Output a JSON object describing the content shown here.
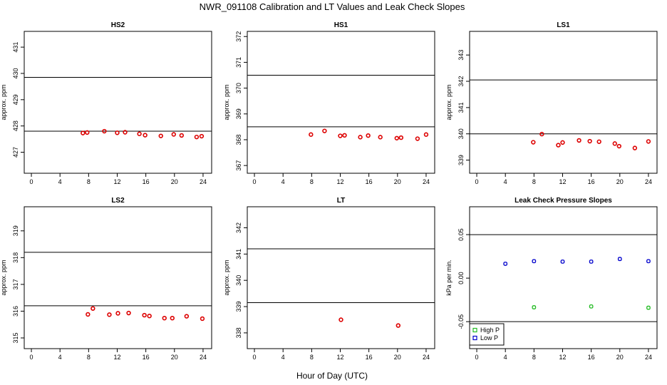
{
  "title": "NWR_091108  Calibration and LT Values and Leak Check Slopes",
  "xlabel": "Hour of Day (UTC)",
  "legend": {
    "high": "High P",
    "low": "Low P"
  },
  "colors": {
    "cal": "#dd0000",
    "high": "#22bb22",
    "low": "#0000cc"
  },
  "chart_data": [
    {
      "type": "scatter",
      "title": "HS2",
      "ylabel": "approx. ppm",
      "xlim": [
        -1,
        25.2
      ],
      "ylim": [
        426.2,
        431.6
      ],
      "xticks": [
        0,
        4,
        8,
        12,
        16,
        20,
        24
      ],
      "yticks": [
        427,
        428,
        429,
        430,
        431
      ],
      "hlines": [
        427.8,
        429.85
      ],
      "series": [
        {
          "style": "cal",
          "x": [
            7.2,
            7.8,
            10.2,
            12.0,
            13.1,
            15.1,
            15.9,
            18.1,
            19.9,
            21.0,
            23.1,
            23.8
          ],
          "y": [
            427.73,
            427.75,
            427.8,
            427.74,
            427.76,
            427.7,
            427.65,
            427.62,
            427.68,
            427.64,
            427.58,
            427.61
          ]
        }
      ]
    },
    {
      "type": "scatter",
      "title": "HS1",
      "ylabel": "approx. ppm",
      "xlim": [
        -1,
        25.2
      ],
      "ylim": [
        366.7,
        372.2
      ],
      "xticks": [
        0,
        4,
        8,
        12,
        16,
        20,
        24
      ],
      "yticks": [
        367,
        368,
        369,
        370,
        371,
        372
      ],
      "hlines": [
        368.5,
        370.5
      ],
      "series": [
        {
          "style": "cal",
          "x": [
            7.9,
            9.8,
            12.0,
            12.6,
            14.8,
            15.9,
            17.6,
            19.9,
            20.5,
            22.8,
            24.0
          ],
          "y": [
            368.2,
            368.34,
            368.15,
            368.17,
            368.1,
            368.16,
            368.1,
            368.06,
            368.08,
            368.04,
            368.2
          ]
        }
      ]
    },
    {
      "type": "scatter",
      "title": "LS1",
      "ylabel": "approx. ppm",
      "xlim": [
        -1,
        25.2
      ],
      "ylim": [
        338.5,
        343.9
      ],
      "xticks": [
        0,
        4,
        8,
        12,
        16,
        20,
        24
      ],
      "yticks": [
        339,
        340,
        341,
        342,
        343
      ],
      "hlines": [
        340.0,
        342.05
      ],
      "series": [
        {
          "style": "cal",
          "x": [
            7.9,
            9.1,
            11.4,
            12.0,
            14.3,
            15.8,
            17.1,
            19.3,
            19.9,
            22.1,
            24.0
          ],
          "y": [
            339.68,
            339.99,
            339.57,
            339.67,
            339.75,
            339.72,
            339.7,
            339.63,
            339.53,
            339.46,
            339.71
          ]
        }
      ]
    },
    {
      "type": "scatter",
      "title": "LS2",
      "ylabel": "approx. ppm",
      "xlim": [
        -1,
        25.2
      ],
      "ylim": [
        314.6,
        319.9
      ],
      "xticks": [
        0,
        4,
        8,
        12,
        16,
        20,
        24
      ],
      "yticks": [
        315,
        316,
        317,
        318,
        319
      ],
      "hlines": [
        316.2,
        318.2
      ],
      "series": [
        {
          "style": "cal",
          "x": [
            7.9,
            8.6,
            10.9,
            12.1,
            13.6,
            15.8,
            16.5,
            18.6,
            19.7,
            21.7,
            23.9
          ],
          "y": [
            315.88,
            316.1,
            315.87,
            315.92,
            315.93,
            315.85,
            315.82,
            315.74,
            315.74,
            315.81,
            315.72
          ]
        }
      ]
    },
    {
      "type": "scatter",
      "title": "LT",
      "ylabel": "approx. ppm",
      "xlim": [
        -1,
        25.2
      ],
      "ylim": [
        337.4,
        342.8
      ],
      "xticks": [
        0,
        4,
        8,
        12,
        16,
        20,
        24
      ],
      "yticks": [
        338,
        339,
        340,
        341,
        342
      ],
      "hlines": [
        339.15,
        341.2
      ],
      "series": [
        {
          "style": "cal",
          "x": [
            12.1,
            20.1
          ],
          "y": [
            338.5,
            338.28
          ]
        }
      ]
    },
    {
      "type": "scatter",
      "title": "Leak Check Pressure Slopes",
      "ylabel": "kPa per min.",
      "xlim": [
        -1,
        25.2
      ],
      "ylim": [
        -0.081,
        0.082
      ],
      "xticks": [
        0,
        4,
        8,
        12,
        16,
        20,
        24
      ],
      "yticks": [
        -0.05,
        0.0,
        0.05
      ],
      "ytick_labels": [
        "-0.05",
        "0.00",
        "0.05"
      ],
      "hlines": [
        -0.05,
        0.05
      ],
      "legend_position": "bottom-left",
      "series": [
        {
          "name": "High P",
          "style": "high",
          "x": [
            8.0,
            16.0,
            24.0
          ],
          "y": [
            -0.0335,
            -0.0325,
            -0.034
          ]
        },
        {
          "name": "Low P",
          "style": "low",
          "x": [
            4.0,
            8.0,
            12.0,
            16.0,
            20.0,
            24.0
          ],
          "y": [
            0.0165,
            0.0195,
            0.019,
            0.019,
            0.022,
            0.0195
          ]
        }
      ]
    }
  ]
}
